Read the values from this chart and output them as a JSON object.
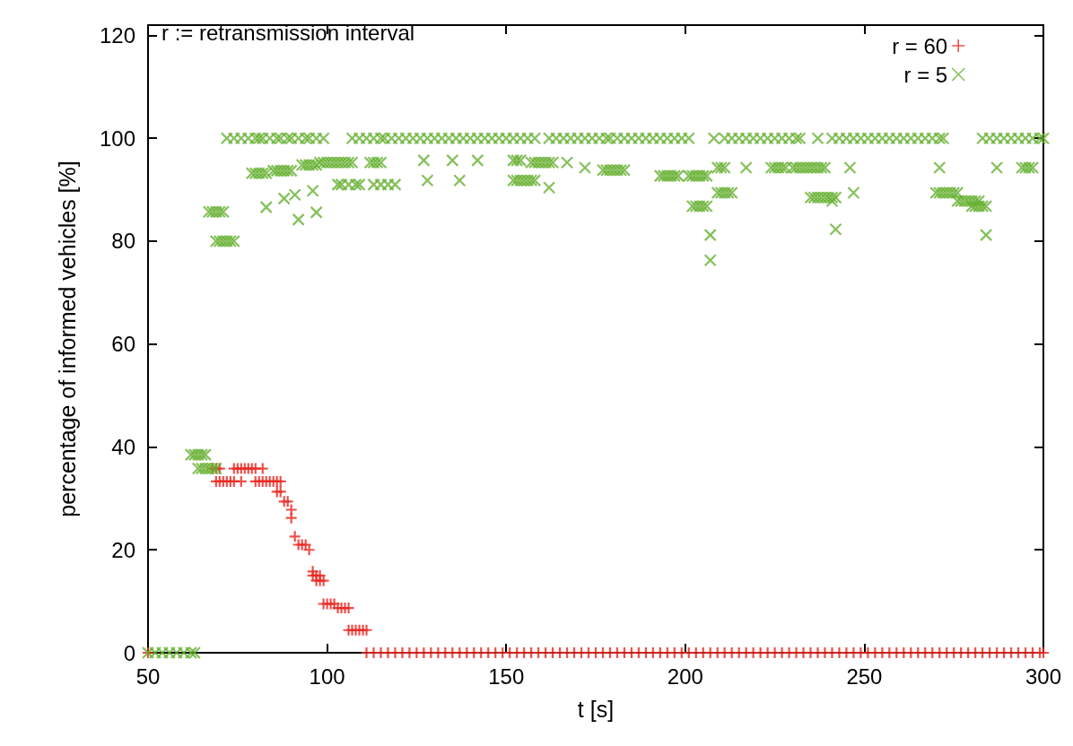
{
  "chart_data": {
    "type": "scatter",
    "xlabel": "t [s]",
    "ylabel": "percentage of informed vehicles [%]",
    "annotations": [
      "r := retransmission interval"
    ],
    "xlim": [
      50,
      300
    ],
    "xticks": [
      50,
      100,
      150,
      200,
      250,
      300
    ],
    "ylim": [
      0,
      122
    ],
    "yticks": [
      0,
      20,
      40,
      60,
      80,
      100,
      120
    ],
    "grid": false,
    "legend": "top right",
    "series": [
      {
        "name": "r = 60",
        "color": "#e8251f",
        "marker": "cross",
        "x": [
          50,
          68,
          69,
          70,
          74,
          75,
          76,
          77,
          78,
          79,
          80,
          82,
          69,
          70,
          71,
          72,
          73,
          74,
          76,
          80,
          81,
          82,
          83,
          84,
          85,
          86,
          87,
          86,
          87,
          88,
          89,
          90,
          90,
          91,
          92,
          93,
          94,
          95,
          96,
          96,
          97,
          98,
          97,
          98,
          99,
          99,
          100,
          101,
          102,
          103,
          104,
          105,
          106,
          106,
          107,
          108,
          109,
          110,
          111,
          111,
          113,
          115,
          117,
          119,
          121,
          123,
          125,
          127,
          129,
          131,
          133,
          135,
          137,
          139,
          141,
          143,
          145,
          147,
          149,
          151,
          153,
          155,
          157,
          159,
          161,
          163,
          165,
          167,
          169,
          171,
          173,
          175,
          177,
          179,
          181,
          183,
          185,
          187,
          189,
          191,
          193,
          195,
          197,
          199,
          201,
          203,
          205,
          207,
          209,
          211,
          213,
          215,
          217,
          219,
          221,
          223,
          225,
          227,
          229,
          231,
          233,
          235,
          237,
          239,
          241,
          243,
          245,
          247,
          249,
          251,
          253,
          255,
          257,
          259,
          261,
          263,
          265,
          267,
          269,
          271,
          273,
          275,
          277,
          279,
          281,
          283,
          285,
          287,
          289,
          291,
          293,
          295,
          297,
          299,
          300
        ],
        "values": [
          0,
          35.8,
          35.8,
          35.8,
          35.8,
          35.8,
          35.8,
          35.8,
          35.8,
          35.8,
          35.8,
          35.8,
          33.3,
          33.3,
          33.3,
          33.3,
          33.3,
          33.3,
          33.3,
          33.3,
          33.3,
          33.3,
          33.3,
          33.3,
          33.3,
          33.3,
          33.3,
          31.3,
          31.3,
          29.4,
          29.4,
          27.8,
          26.2,
          22.6,
          21,
          21,
          21,
          20,
          15.8,
          15,
          15,
          15,
          14,
          14,
          14,
          9.5,
          9.5,
          9.5,
          9.5,
          8.7,
          8.7,
          8.7,
          8.7,
          4.4,
          4.4,
          4.4,
          4.4,
          4.4,
          4.4,
          0,
          0,
          0,
          0,
          0,
          0,
          0,
          0,
          0,
          0,
          0,
          0,
          0,
          0,
          0,
          0,
          0,
          0,
          0,
          0,
          0,
          0,
          0,
          0,
          0,
          0,
          0,
          0,
          0,
          0,
          0,
          0,
          0,
          0,
          0,
          0,
          0,
          0,
          0,
          0,
          0,
          0,
          0,
          0,
          0,
          0,
          0,
          0,
          0,
          0,
          0,
          0,
          0,
          0,
          0,
          0,
          0,
          0,
          0,
          0,
          0,
          0,
          0,
          0,
          0,
          0,
          0,
          0,
          0,
          0,
          0,
          0,
          0,
          0,
          0,
          0,
          0,
          0,
          0,
          0,
          0,
          0,
          0,
          0,
          0,
          0,
          0,
          0,
          0,
          0,
          0,
          0,
          0,
          0,
          0,
          0
        ]
      },
      {
        "name": "r = 5",
        "color": "#66b032",
        "marker": "x",
        "x": [
          50,
          52,
          54,
          56,
          58,
          60,
          62,
          63,
          62,
          63,
          64,
          65,
          66,
          64,
          65,
          66,
          67,
          68,
          69,
          67,
          68,
          69,
          70,
          71,
          97,
          92,
          69,
          70,
          71,
          72,
          73,
          74,
          72,
          74,
          76,
          78,
          80,
          81,
          82,
          84,
          86,
          87,
          89,
          90,
          92,
          94,
          95,
          97,
          99,
          107,
          109,
          111,
          113,
          115,
          116,
          118,
          120,
          122,
          124,
          126,
          128,
          130,
          132,
          134,
          136,
          138,
          140,
          142,
          144,
          146,
          148,
          150,
          152,
          154,
          156,
          158,
          162,
          164,
          166,
          168,
          170,
          172,
          174,
          176,
          178,
          179,
          181,
          183,
          185,
          187,
          189,
          191,
          193,
          195,
          197,
          199,
          201,
          208,
          211,
          213,
          215,
          217,
          219,
          221,
          223,
          225,
          227,
          229,
          231,
          232,
          237,
          241,
          243,
          245,
          247,
          249,
          251,
          253,
          255,
          257,
          259,
          261,
          263,
          265,
          267,
          269,
          271,
          272,
          283,
          285,
          287,
          289,
          291,
          293,
          295,
          297,
          299,
          300,
          83,
          88,
          91,
          96,
          103,
          104,
          106,
          108,
          109,
          113,
          115,
          117,
          119,
          79,
          80,
          81,
          82,
          83,
          85,
          86,
          87,
          88,
          89,
          90,
          93,
          94,
          95,
          96,
          97,
          98,
          99,
          100,
          101,
          102,
          103,
          104,
          105,
          106,
          107,
          112,
          113,
          114,
          115,
          127,
          135,
          142,
          152,
          153,
          154,
          157,
          158,
          159,
          160,
          161,
          162,
          163,
          167,
          172,
          177,
          178,
          179,
          180,
          181,
          182,
          183,
          128,
          137,
          152,
          153,
          154,
          155,
          156,
          157,
          158,
          162,
          193,
          194,
          195,
          196,
          197,
          198,
          201,
          202,
          203,
          204,
          205,
          206,
          209,
          210,
          211,
          217,
          224,
          225,
          226,
          227,
          228,
          230,
          231,
          232,
          233,
          234,
          235,
          236,
          237,
          238,
          239,
          246,
          271,
          287,
          294,
          295,
          296,
          297,
          209,
          210,
          211,
          212,
          213,
          247,
          270,
          271,
          272,
          273,
          274,
          275,
          276,
          202,
          203,
          204,
          205,
          206,
          280,
          281,
          282,
          283,
          284,
          235,
          236,
          237,
          238,
          239,
          240,
          241,
          242,
          276,
          277,
          278,
          279,
          280,
          281,
          282,
          207,
          284,
          207,
          242,
          241
        ],
        "values": [
          0,
          0,
          0,
          0,
          0,
          0,
          0,
          0,
          38.5,
          38.5,
          38.5,
          38.5,
          38.5,
          35.8,
          35.8,
          35.8,
          35.8,
          35.8,
          35.8,
          85.7,
          85.7,
          85.7,
          85.7,
          85.7,
          85.6,
          84.2,
          80,
          80,
          80,
          80,
          80,
          80,
          100,
          100,
          100,
          100,
          100,
          100,
          100,
          100,
          100,
          100,
          100,
          100,
          100,
          100,
          100,
          100,
          100,
          100,
          100,
          100,
          100,
          100,
          100,
          100,
          100,
          100,
          100,
          100,
          100,
          100,
          100,
          100,
          100,
          100,
          100,
          100,
          100,
          100,
          100,
          100,
          100,
          100,
          100,
          100,
          100,
          100,
          100,
          100,
          100,
          100,
          100,
          100,
          100,
          100,
          100,
          100,
          100,
          100,
          100,
          100,
          100,
          100,
          100,
          100,
          100,
          100,
          100,
          100,
          100,
          100,
          100,
          100,
          100,
          100,
          100,
          100,
          100,
          100,
          100,
          100,
          100,
          100,
          100,
          100,
          100,
          100,
          100,
          100,
          100,
          100,
          100,
          100,
          100,
          100,
          100,
          100,
          100,
          100,
          100,
          100,
          100,
          100,
          100,
          100,
          100,
          100,
          86.6,
          88.3,
          89,
          89.8,
          91,
          91,
          91,
          91,
          91,
          91,
          91,
          91,
          91,
          93.2,
          93.2,
          93.2,
          93.2,
          93.2,
          93.7,
          93.7,
          93.7,
          93.7,
          93.7,
          93.7,
          94.8,
          94.8,
          94.8,
          94.8,
          94.8,
          95.3,
          95.3,
          95.3,
          95.3,
          95.3,
          95.3,
          95.3,
          95.3,
          95.3,
          95.3,
          95.3,
          95.3,
          95.3,
          95.3,
          95.7,
          95.7,
          95.7,
          95.7,
          95.7,
          95.7,
          95.3,
          95.3,
          95.3,
          95.3,
          95.3,
          95.3,
          95.3,
          95.3,
          94.3,
          93.8,
          93.8,
          93.8,
          93.8,
          93.8,
          93.8,
          93.8,
          91.8,
          91.8,
          91.8,
          91.8,
          91.8,
          91.8,
          91.8,
          91.8,
          91.8,
          90.4,
          92.7,
          92.7,
          92.7,
          92.7,
          92.7,
          92.7,
          92.7,
          92.7,
          92.7,
          92.7,
          92.7,
          92.7,
          94.3,
          94.3,
          94.3,
          94.3,
          94.3,
          94.3,
          94.3,
          94.3,
          94.3,
          94.3,
          94.3,
          94.3,
          94.3,
          94.3,
          94.3,
          94.3,
          94.3,
          94.3,
          94.3,
          94.3,
          94.3,
          94.3,
          94.3,
          94.3,
          94.3,
          94.3,
          89.4,
          89.4,
          89.4,
          89.4,
          89.4,
          89.4,
          89.4,
          89.4,
          89.4,
          89.4,
          89.4,
          89.4,
          89.4,
          86.8,
          86.8,
          86.8,
          86.8,
          86.8,
          86.8,
          86.8,
          86.8,
          86.8,
          86.8,
          88.5,
          88.5,
          88.5,
          88.5,
          88.5,
          88.5,
          88.5,
          88.5,
          87.8,
          87.8,
          87.8,
          87.8,
          87.8,
          87.8,
          87.8,
          81.2,
          81.2,
          76.3,
          82.3,
          87.8
        ]
      }
    ]
  }
}
